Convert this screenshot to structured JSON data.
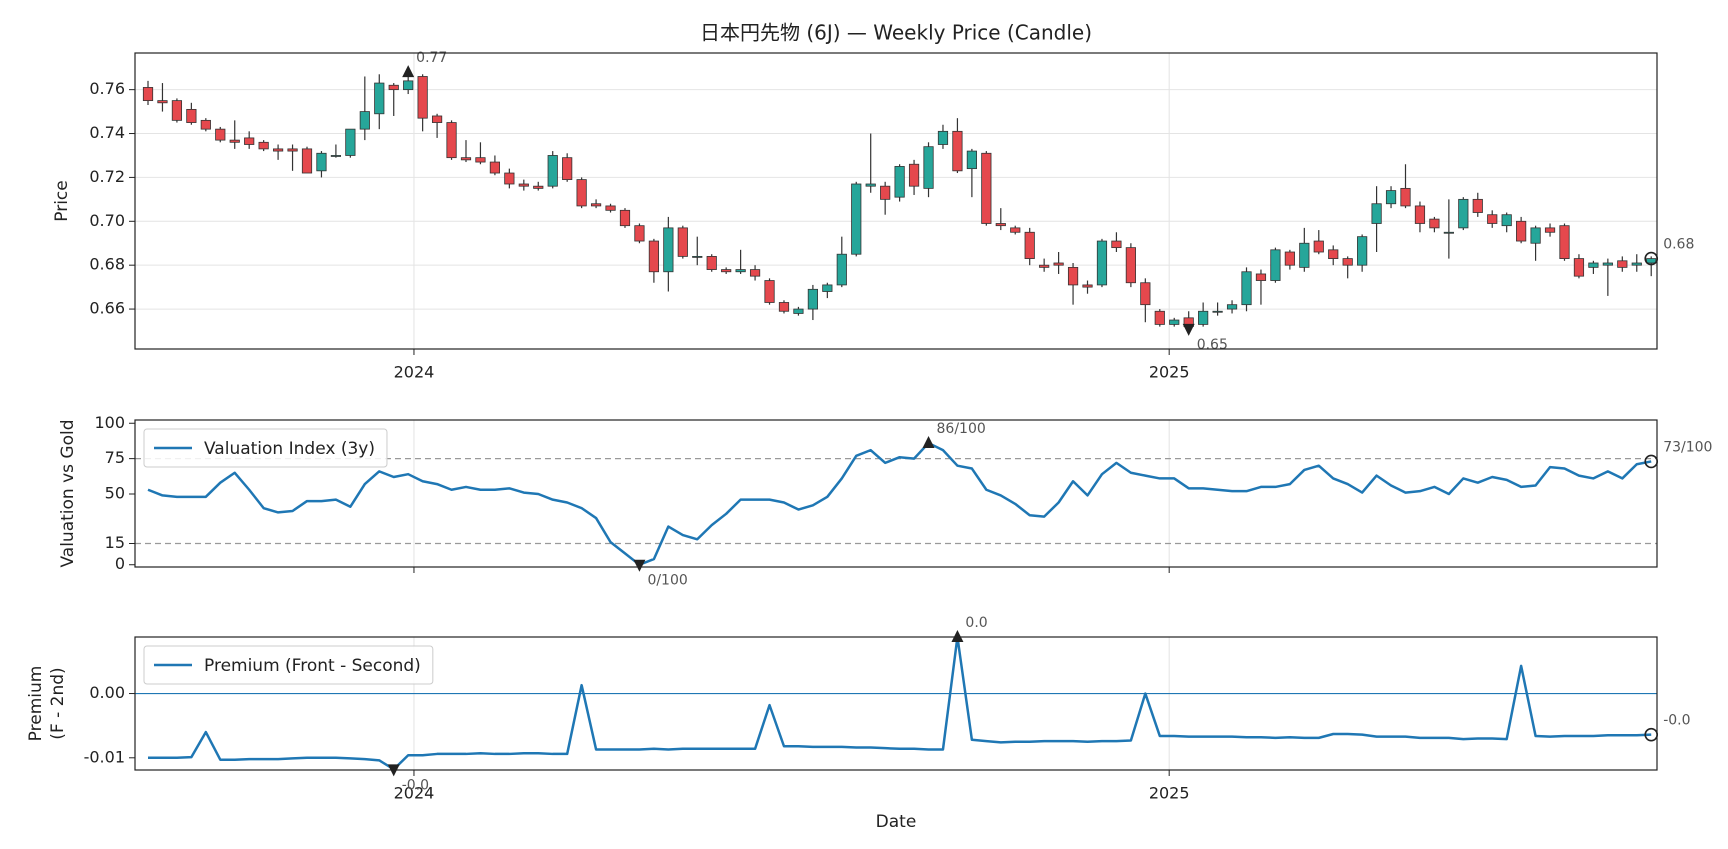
{
  "chart_data": [
    {
      "type": "candlestick",
      "title": "日本円先物 (6J) — Weekly Price (Candle)",
      "ylabel": [
        "Price"
      ],
      "up_color": "#26a69a",
      "down_color": "#e5484d",
      "grid": "both",
      "x": [
        0,
        1,
        2,
        3,
        4,
        5,
        6,
        7,
        8,
        9,
        10,
        11,
        12,
        13,
        14,
        15,
        16,
        17,
        18,
        19,
        20,
        21,
        22,
        23,
        24,
        25,
        26,
        27,
        28,
        29,
        30,
        31,
        32,
        33,
        34,
        35,
        36,
        37,
        38,
        39,
        40,
        41,
        42,
        43,
        44,
        45,
        46,
        47,
        48,
        49,
        50,
        51,
        52,
        53,
        54,
        55,
        56,
        57,
        58,
        59,
        60,
        61,
        62,
        63,
        64,
        65,
        66,
        67,
        68,
        69,
        70,
        71,
        72,
        73,
        74,
        75,
        76,
        77,
        78,
        79,
        80,
        81,
        82,
        83,
        84,
        85,
        86,
        87,
        88,
        89,
        90,
        91,
        92,
        93,
        94,
        95,
        96,
        97,
        98,
        99,
        100,
        101,
        102,
        103,
        104
      ],
      "open": [
        0.761,
        0.755,
        0.755,
        0.751,
        0.746,
        0.742,
        0.737,
        0.738,
        0.736,
        0.733,
        0.733,
        0.733,
        0.723,
        0.73,
        0.73,
        0.742,
        0.749,
        0.762,
        0.76,
        0.766,
        0.748,
        0.745,
        0.729,
        0.729,
        0.727,
        0.722,
        0.717,
        0.716,
        0.716,
        0.729,
        0.719,
        0.708,
        0.707,
        0.705,
        0.698,
        0.691,
        0.677,
        0.697,
        0.684,
        0.684,
        0.678,
        0.677,
        0.678,
        0.673,
        0.663,
        0.658,
        0.66,
        0.668,
        0.671,
        0.685,
        0.716,
        0.716,
        0.711,
        0.726,
        0.715,
        0.735,
        0.741,
        0.724,
        0.731,
        0.699,
        0.697,
        0.695,
        0.68,
        0.681,
        0.679,
        0.671,
        0.671,
        0.691,
        0.688,
        0.672,
        0.659,
        0.653,
        0.656,
        0.653,
        0.659,
        0.66,
        0.662,
        0.676,
        0.673,
        0.686,
        0.679,
        0.691,
        0.687,
        0.683,
        0.68,
        0.699,
        0.708,
        0.715,
        0.707,
        0.701,
        0.695,
        0.697,
        0.71,
        0.703,
        0.698,
        0.7,
        0.69,
        0.697,
        0.698,
        0.683,
        0.679,
        0.68,
        0.682,
        0.68,
        0.681
      ],
      "high": [
        0.764,
        0.763,
        0.756,
        0.754,
        0.747,
        0.743,
        0.746,
        0.741,
        0.737,
        0.735,
        0.735,
        0.734,
        0.732,
        0.735,
        0.742,
        0.766,
        0.767,
        0.763,
        0.768,
        0.767,
        0.749,
        0.746,
        0.737,
        0.736,
        0.73,
        0.724,
        0.719,
        0.718,
        0.732,
        0.731,
        0.72,
        0.71,
        0.708,
        0.706,
        0.699,
        0.692,
        0.702,
        0.698,
        0.693,
        0.685,
        0.679,
        0.687,
        0.68,
        0.674,
        0.664,
        0.661,
        0.671,
        0.672,
        0.693,
        0.718,
        0.74,
        0.718,
        0.726,
        0.728,
        0.736,
        0.744,
        0.747,
        0.733,
        0.732,
        0.706,
        0.698,
        0.697,
        0.683,
        0.686,
        0.681,
        0.673,
        0.692,
        0.695,
        0.69,
        0.674,
        0.66,
        0.656,
        0.659,
        0.663,
        0.663,
        0.664,
        0.679,
        0.678,
        0.688,
        0.687,
        0.697,
        0.696,
        0.689,
        0.684,
        0.694,
        0.716,
        0.716,
        0.726,
        0.709,
        0.702,
        0.71,
        0.711,
        0.713,
        0.705,
        0.704,
        0.702,
        0.698,
        0.699,
        0.699,
        0.685,
        0.682,
        0.683,
        0.684,
        0.685,
        0.684
      ],
      "low": [
        0.753,
        0.75,
        0.745,
        0.744,
        0.741,
        0.736,
        0.733,
        0.733,
        0.732,
        0.728,
        0.723,
        0.722,
        0.72,
        0.729,
        0.729,
        0.737,
        0.742,
        0.748,
        0.758,
        0.741,
        0.738,
        0.728,
        0.727,
        0.726,
        0.721,
        0.715,
        0.714,
        0.714,
        0.715,
        0.718,
        0.706,
        0.706,
        0.704,
        0.697,
        0.69,
        0.672,
        0.668,
        0.683,
        0.68,
        0.677,
        0.676,
        0.676,
        0.673,
        0.662,
        0.658,
        0.657,
        0.655,
        0.665,
        0.67,
        0.684,
        0.713,
        0.703,
        0.709,
        0.712,
        0.711,
        0.733,
        0.722,
        0.711,
        0.698,
        0.696,
        0.694,
        0.68,
        0.677,
        0.676,
        0.662,
        0.667,
        0.67,
        0.686,
        0.67,
        0.654,
        0.652,
        0.652,
        0.651,
        0.652,
        0.657,
        0.658,
        0.659,
        0.662,
        0.672,
        0.678,
        0.677,
        0.685,
        0.68,
        0.674,
        0.677,
        0.686,
        0.706,
        0.706,
        0.695,
        0.695,
        0.683,
        0.696,
        0.702,
        0.697,
        0.695,
        0.69,
        0.682,
        0.693,
        0.682,
        0.674,
        0.676,
        0.666,
        0.677,
        0.677,
        0.675
      ],
      "close": [
        0.755,
        0.754,
        0.746,
        0.745,
        0.742,
        0.737,
        0.736,
        0.735,
        0.733,
        0.732,
        0.732,
        0.722,
        0.731,
        0.73,
        0.742,
        0.75,
        0.763,
        0.76,
        0.764,
        0.747,
        0.745,
        0.729,
        0.728,
        0.727,
        0.722,
        0.717,
        0.716,
        0.715,
        0.73,
        0.719,
        0.707,
        0.707,
        0.705,
        0.698,
        0.691,
        0.677,
        0.697,
        0.684,
        0.684,
        0.678,
        0.677,
        0.678,
        0.675,
        0.663,
        0.659,
        0.66,
        0.669,
        0.671,
        0.685,
        0.717,
        0.717,
        0.71,
        0.725,
        0.716,
        0.734,
        0.741,
        0.723,
        0.732,
        0.699,
        0.698,
        0.695,
        0.683,
        0.679,
        0.68,
        0.671,
        0.67,
        0.691,
        0.688,
        0.672,
        0.662,
        0.653,
        0.655,
        0.652,
        0.659,
        0.659,
        0.662,
        0.677,
        0.673,
        0.687,
        0.68,
        0.69,
        0.686,
        0.683,
        0.68,
        0.693,
        0.708,
        0.714,
        0.707,
        0.699,
        0.697,
        0.695,
        0.71,
        0.704,
        0.699,
        0.703,
        0.691,
        0.697,
        0.695,
        0.683,
        0.675,
        0.681,
        0.681,
        0.679,
        0.681,
        0.683
      ],
      "xlim": [
        -0.9,
        104.4
      ],
      "ylim": [
        0.6418,
        0.7767
      ],
      "xticks": [
        {
          "value": 18.4,
          "label": "2024"
        },
        {
          "value": 70.65,
          "label": "2025"
        }
      ],
      "yticks": [
        0.66,
        0.68,
        {
          "value": 0.7,
          "label": "0.70"
        },
        0.72,
        0.74,
        0.76
      ],
      "markers": [
        {
          "kind": "max",
          "index": 18,
          "field": "high",
          "label": "0.77"
        },
        {
          "kind": "min",
          "index": 72,
          "field": "low",
          "label": "0.65"
        },
        {
          "kind": "last",
          "index": 104,
          "field": "close",
          "label": "0.68"
        }
      ]
    },
    {
      "type": "line",
      "ylabel": [
        "Valuation vs Gold"
      ],
      "grid": "x",
      "legend": "upper left",
      "xtick_labels": false,
      "x": [
        0,
        1,
        2,
        3,
        4,
        5,
        6,
        7,
        8,
        9,
        10,
        11,
        12,
        13,
        14,
        15,
        16,
        17,
        18,
        19,
        20,
        21,
        22,
        23,
        24,
        25,
        26,
        27,
        28,
        29,
        30,
        31,
        32,
        33,
        34,
        35,
        36,
        37,
        38,
        39,
        40,
        41,
        42,
        43,
        44,
        45,
        46,
        47,
        48,
        49,
        50,
        51,
        52,
        53,
        54,
        55,
        56,
        57,
        58,
        59,
        60,
        61,
        62,
        63,
        64,
        65,
        66,
        67,
        68,
        69,
        70,
        71,
        72,
        73,
        74,
        75,
        76,
        77,
        78,
        79,
        80,
        81,
        82,
        83,
        84,
        85,
        86,
        87,
        88,
        89,
        90,
        91,
        92,
        93,
        94,
        95,
        96,
        97,
        98,
        99,
        100,
        101,
        102,
        103,
        104
      ],
      "series": [
        {
          "name": "Valuation Index (3y)",
          "color": "#1f77b4",
          "values": [
            53,
            49,
            48,
            48,
            48,
            58,
            65,
            53,
            40,
            37,
            38,
            45,
            45,
            46,
            41,
            57,
            66,
            62,
            64,
            59,
            57,
            53,
            55,
            53,
            53,
            54,
            51,
            50,
            46,
            44,
            40,
            33,
            16,
            8,
            0,
            4,
            27,
            21,
            18,
            28,
            36,
            46,
            46,
            46,
            44,
            39,
            42,
            48,
            61,
            77,
            81,
            72,
            76,
            75,
            86,
            81,
            70,
            68,
            53,
            49,
            43,
            35,
            34,
            44,
            59,
            49,
            64,
            72,
            65,
            63,
            61,
            61,
            54,
            54,
            53,
            52,
            52,
            55,
            55,
            57,
            67,
            70,
            61,
            57,
            51,
            63,
            56,
            51,
            52,
            55,
            50,
            61,
            58,
            62,
            60,
            55,
            56,
            69,
            68,
            63,
            61,
            66,
            61,
            71,
            73
          ]
        }
      ],
      "reference_lines": [
        75,
        15
      ],
      "xlim": [
        -0.9,
        104.4
      ],
      "ylim": [
        -1.6,
        102.3
      ],
      "xticks": [
        18.4,
        70.65
      ],
      "yticks": [
        0,
        15,
        50,
        75,
        100
      ],
      "markers": [
        {
          "kind": "max",
          "index": 54,
          "label": "86/100"
        },
        {
          "kind": "min",
          "index": 34,
          "label": "0/100"
        },
        {
          "kind": "last",
          "index": 104,
          "label": "73/100"
        }
      ]
    },
    {
      "type": "line",
      "ylabel": [
        "Premium",
        "(F - 2nd)"
      ],
      "xlabel": "Date",
      "grid": "x",
      "legend": "upper left",
      "zero_line": true,
      "x": [
        0,
        1,
        2,
        3,
        4,
        5,
        6,
        7,
        8,
        9,
        10,
        11,
        12,
        13,
        14,
        15,
        16,
        17,
        18,
        19,
        20,
        21,
        22,
        23,
        24,
        25,
        26,
        27,
        28,
        29,
        30,
        31,
        32,
        33,
        34,
        35,
        36,
        37,
        38,
        39,
        40,
        41,
        42,
        43,
        44,
        45,
        46,
        47,
        48,
        49,
        50,
        51,
        52,
        53,
        54,
        55,
        56,
        57,
        58,
        59,
        60,
        61,
        62,
        63,
        64,
        65,
        66,
        67,
        68,
        69,
        70,
        71,
        72,
        73,
        74,
        75,
        76,
        77,
        78,
        79,
        80,
        81,
        82,
        83,
        84,
        85,
        86,
        87,
        88,
        89,
        90,
        91,
        92,
        93,
        94,
        95,
        96,
        97,
        98,
        99,
        100,
        101,
        102,
        103,
        104
      ],
      "series": [
        {
          "name": "Premium (Front - Second)",
          "color": "#1f77b4",
          "values": [
            -0.01,
            -0.01,
            -0.01,
            -0.0099,
            -0.006,
            -0.0103,
            -0.0103,
            -0.0102,
            -0.0102,
            -0.0102,
            -0.0101,
            -0.01,
            -0.01,
            -0.01,
            -0.0101,
            -0.0102,
            -0.0104,
            -0.0118,
            -0.0096,
            -0.0096,
            -0.0094,
            -0.0094,
            -0.0094,
            -0.0093,
            -0.0094,
            -0.0094,
            -0.0093,
            -0.0093,
            -0.0094,
            -0.0094,
            0.0013,
            -0.0087,
            -0.0087,
            -0.0087,
            -0.0087,
            -0.0086,
            -0.0087,
            -0.0086,
            -0.0086,
            -0.0086,
            -0.0086,
            -0.0086,
            -0.0086,
            -0.0018,
            -0.0082,
            -0.0082,
            -0.0083,
            -0.0083,
            -0.0083,
            -0.0084,
            -0.0084,
            -0.0085,
            -0.0086,
            -0.0086,
            -0.0087,
            -0.0087,
            0.0088,
            -0.0072,
            -0.0074,
            -0.0076,
            -0.0075,
            -0.0075,
            -0.0074,
            -0.0074,
            -0.0074,
            -0.0075,
            -0.0074,
            -0.0074,
            -0.0073,
            0.0,
            -0.0066,
            -0.0066,
            -0.0067,
            -0.0067,
            -0.0067,
            -0.0067,
            -0.0068,
            -0.0068,
            -0.0069,
            -0.0068,
            -0.0069,
            -0.0069,
            -0.0063,
            -0.0063,
            -0.0064,
            -0.0067,
            -0.0067,
            -0.0067,
            -0.0069,
            -0.0069,
            -0.0069,
            -0.0071,
            -0.007,
            -0.007,
            -0.0071,
            0.0043,
            -0.0066,
            -0.0067,
            -0.0066,
            -0.0066,
            -0.0066,
            -0.0065,
            -0.0065,
            -0.0065,
            -0.0064
          ]
        }
      ],
      "xlim": [
        -0.9,
        104.4
      ],
      "ylim": [
        -0.0119,
        0.0088
      ],
      "xticks": [
        {
          "value": 18.4,
          "label": "2024"
        },
        {
          "value": 70.65,
          "label": "2025"
        }
      ],
      "yticks": [
        {
          "value": 0,
          "label": "0.00"
        },
        {
          "value": -0.01,
          "label": "-0.01"
        }
      ],
      "markers": [
        {
          "kind": "max",
          "index": 56,
          "label": "0.0"
        },
        {
          "kind": "min",
          "index": 17,
          "label": "-0.0"
        },
        {
          "kind": "last",
          "index": 104,
          "label": "-0.0"
        }
      ]
    }
  ]
}
